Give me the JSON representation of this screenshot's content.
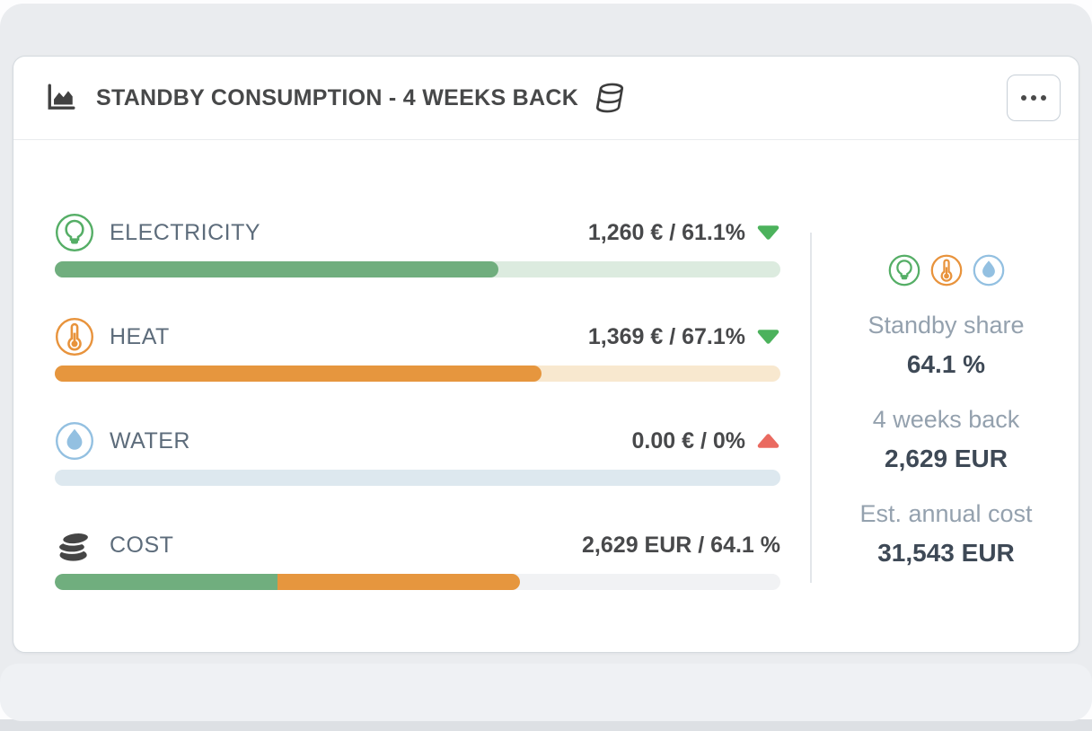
{
  "header": {
    "title": "STANDBY CONSUMPTION - 4 WEEKS BACK",
    "icons": {
      "title_icon": "area-chart-icon",
      "data_source_icon": "database-icon",
      "menu_icon": "ellipsis-icon"
    }
  },
  "rows": [
    {
      "label": "ELECTRICITY",
      "value": "1,260 € / 61.1%",
      "icon": "lightbulb-icon",
      "icon_color": "#55ae66",
      "trend": "down",
      "trend_color": "#4cb25c",
      "bar": {
        "track_color": "#dcebdf",
        "segments": [
          {
            "color": "#70ae7e",
            "pct": 61.1
          }
        ]
      }
    },
    {
      "label": "HEAT",
      "value": "1,369 € / 67.1%",
      "icon": "thermometer-icon",
      "icon_color": "#e8933c",
      "trend": "down",
      "trend_color": "#4cb25c",
      "bar": {
        "track_color": "#f8e8cf",
        "segments": [
          {
            "color": "#e6963e",
            "pct": 67.1
          }
        ]
      }
    },
    {
      "label": "WATER",
      "value": "0.00 € / 0%",
      "icon": "droplet-icon",
      "icon_color": "#93c0e1",
      "trend": "up",
      "trend_color": "#ea6a60",
      "bar": {
        "track_color": "#dde8ef",
        "segments": []
      }
    },
    {
      "label": "COST",
      "value": "2,629 EUR / 64.1 %",
      "icon": "coins-icon",
      "icon_color": "#454545",
      "trend": null,
      "bar": {
        "track_color": "#f1f2f4",
        "segments": [
          {
            "color": "#70ae7e",
            "pct": 30.7
          },
          {
            "color": "#e6963e",
            "pct": 33.4
          }
        ]
      }
    }
  ],
  "sidebar": {
    "icons": [
      {
        "name": "lightbulb-icon",
        "color": "#55ae66"
      },
      {
        "name": "thermometer-icon",
        "color": "#e8933c"
      },
      {
        "name": "droplet-icon",
        "color": "#93c0e1"
      }
    ],
    "stats": [
      {
        "label": "Standby share",
        "value": "64.1 %"
      },
      {
        "label": "4 weeks back",
        "value": "2,629 EUR"
      },
      {
        "label": "Est. annual cost",
        "value": "31,543 EUR"
      }
    ]
  },
  "colors": {
    "green_fill": "#70ae7e",
    "green_track": "#dcebdf",
    "orange_fill": "#e6963e",
    "orange_track": "#f8e8cf",
    "water_track": "#dde8ef",
    "cost_track": "#f1f2f4",
    "trend_down_green": "#4cb25c",
    "trend_up_red": "#ea6a60",
    "label_text": "#5d6c7b",
    "value_text": "#48494b",
    "frame_background": "#eaecef"
  }
}
